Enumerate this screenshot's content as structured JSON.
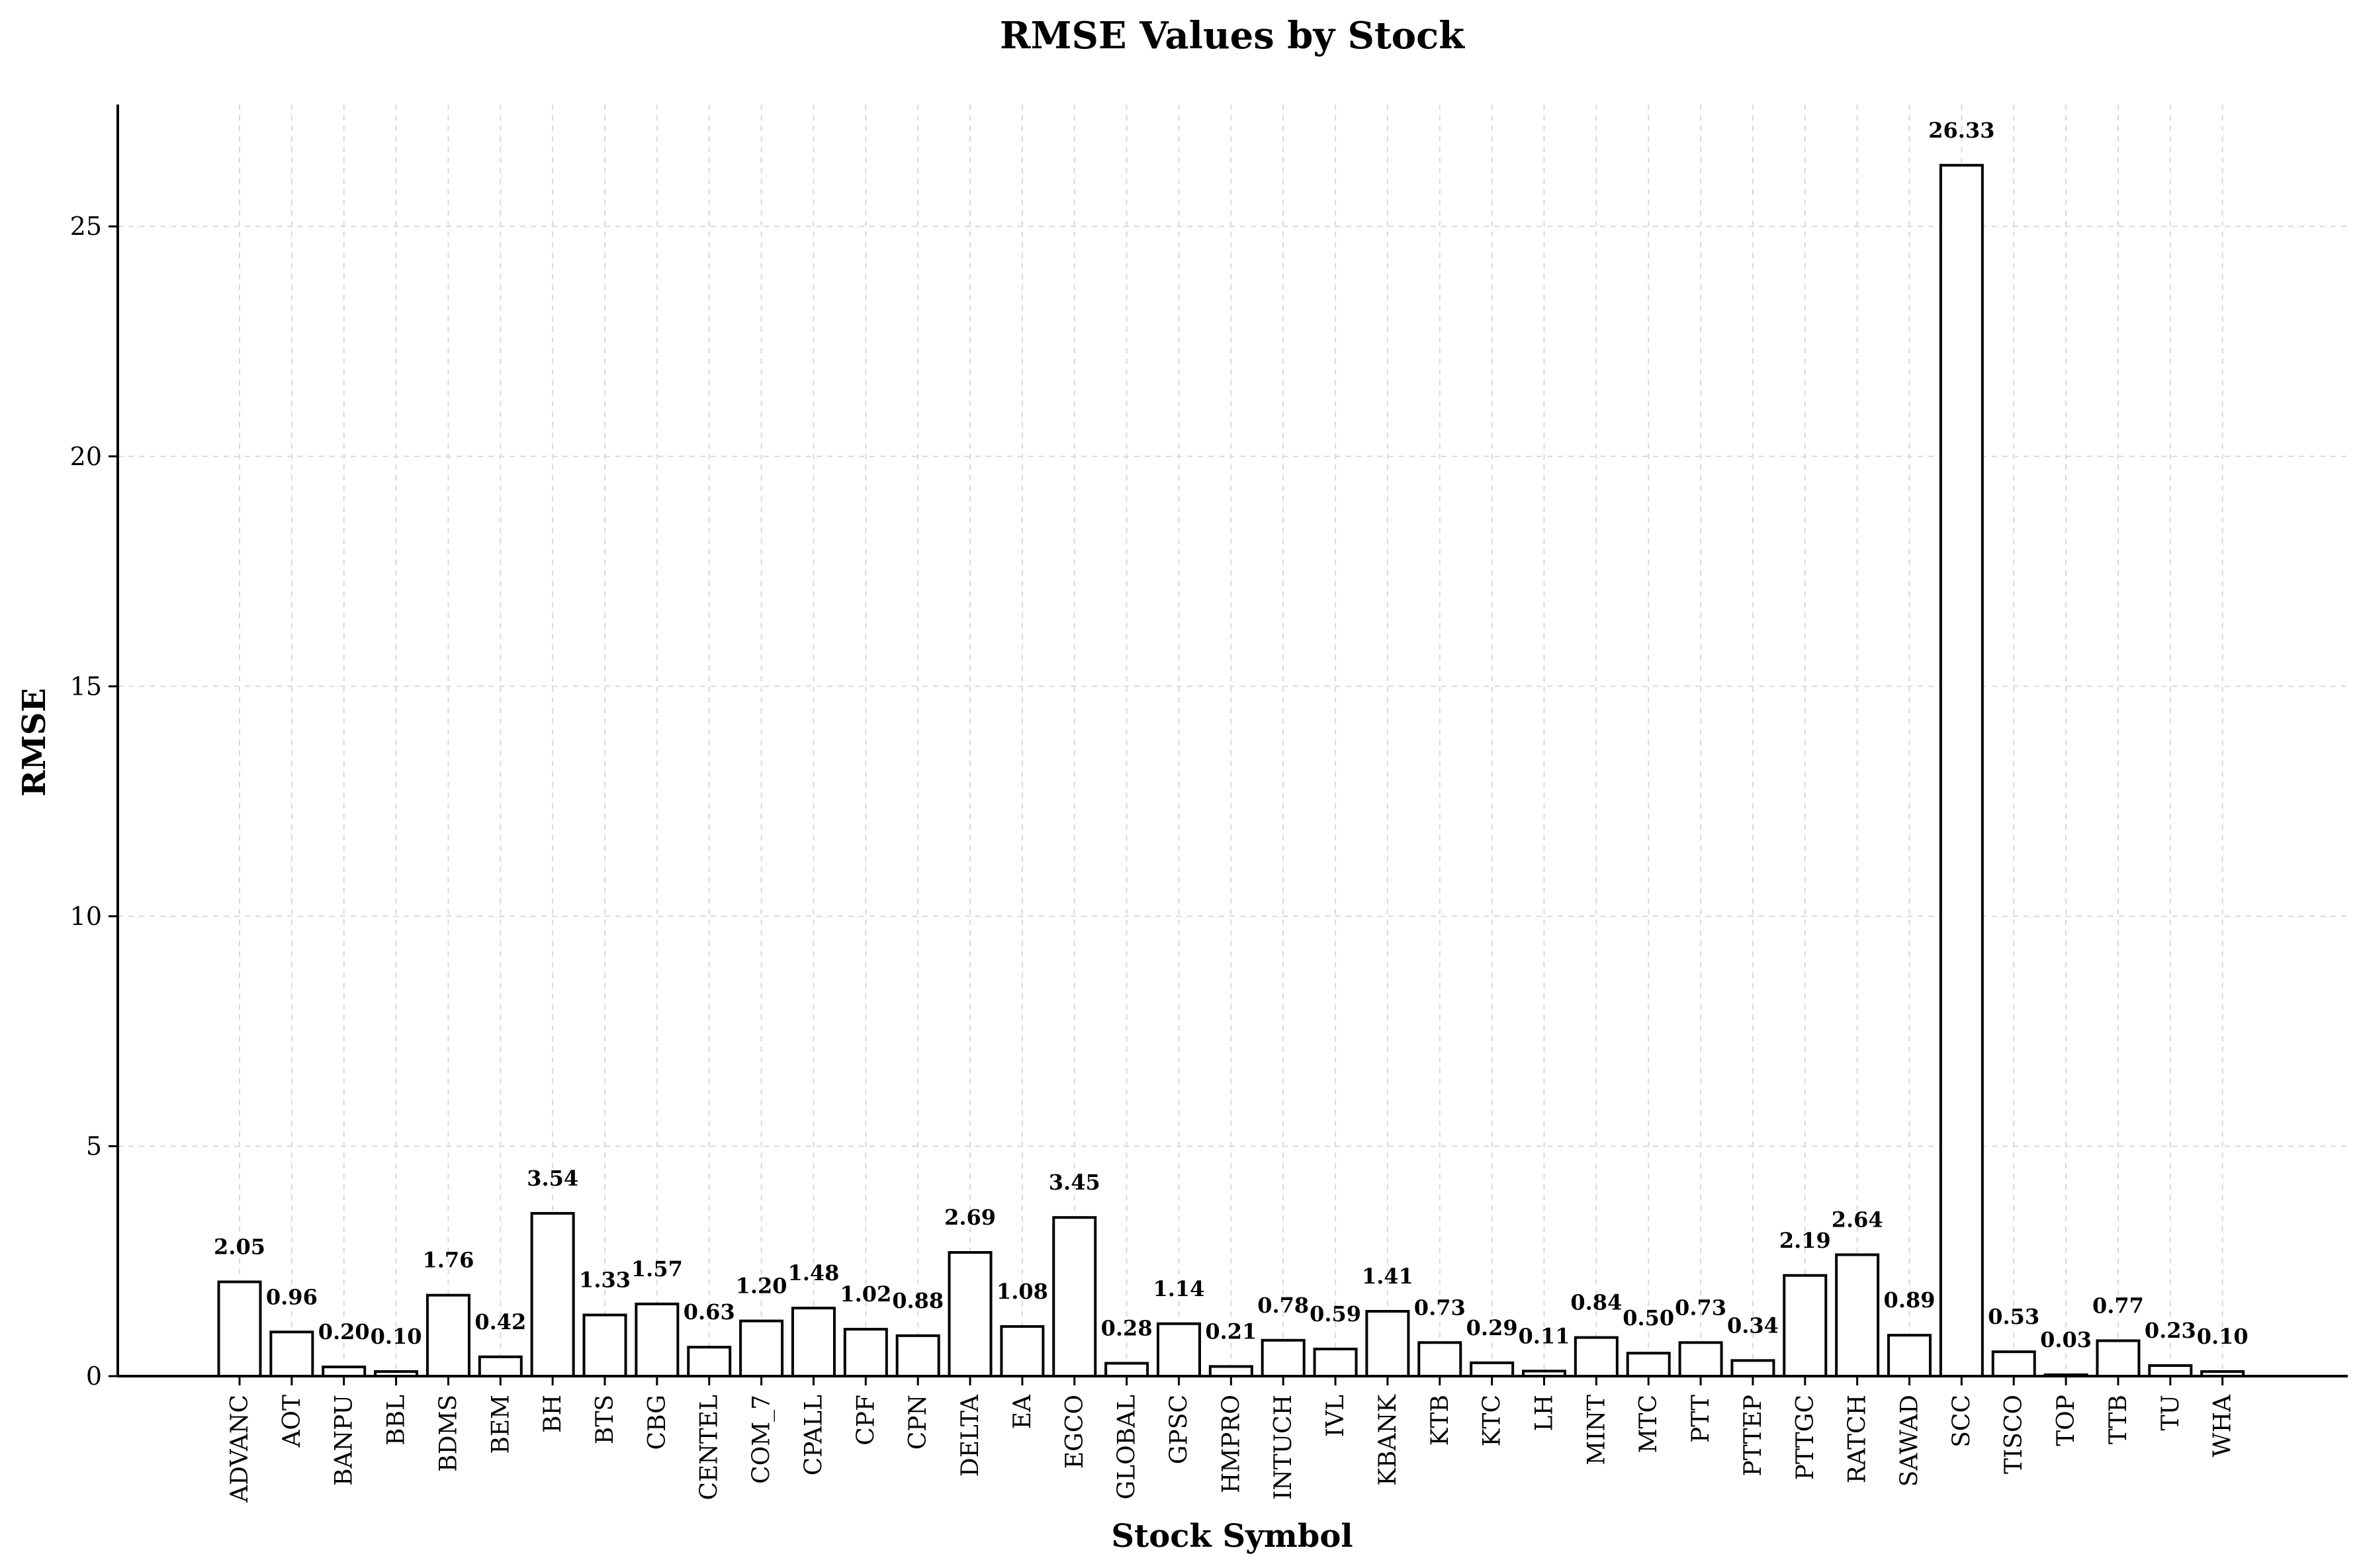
{
  "chart_data": {
    "type": "bar",
    "title": "RMSE Values by Stock",
    "xlabel": "Stock Symbol",
    "ylabel": "RMSE",
    "ylim": [
      0,
      27.65
    ],
    "yticks": [
      0,
      5,
      10,
      15,
      20,
      25
    ],
    "grid": true,
    "categories": [
      "ADVANC",
      "AOT",
      "BANPU",
      "BBL",
      "BDMS",
      "BEM",
      "BH",
      "BTS",
      "CBG",
      "CENTEL",
      "COM_7",
      "CPALL",
      "CPF",
      "CPN",
      "DELTA",
      "EA",
      "EGCO",
      "GLOBAL",
      "GPSC",
      "HMPRO",
      "INTUCH",
      "IVL",
      "KBANK",
      "KTB",
      "KTC",
      "LH",
      "MINT",
      "MTC",
      "PTT",
      "PTTEP",
      "PTTGC",
      "RATCH",
      "SAWAD",
      "SCC",
      "TISCO",
      "TOP",
      "TTB",
      "TU",
      "WHA"
    ],
    "values": [
      2.05,
      0.96,
      0.2,
      0.1,
      1.76,
      0.42,
      3.54,
      1.33,
      1.57,
      0.63,
      1.2,
      1.48,
      1.02,
      0.88,
      2.69,
      1.08,
      3.45,
      0.28,
      1.14,
      0.21,
      0.78,
      0.59,
      1.41,
      0.73,
      0.29,
      0.11,
      0.84,
      0.5,
      0.73,
      0.34,
      2.19,
      2.64,
      0.89,
      26.33,
      0.53,
      0.03,
      0.77,
      0.23,
      0.1
    ],
    "labels": [
      "2.05",
      "0.96",
      "0.20",
      "0.10",
      "1.76",
      "0.42",
      "3.54",
      "1.33",
      "1.57",
      "0.63",
      "1.20",
      "1.48",
      "1.02",
      "0.88",
      "2.69",
      "1.08",
      "3.45",
      "0.28",
      "1.14",
      "0.21",
      "0.78",
      "0.59",
      "1.41",
      "0.73",
      "0.29",
      "0.11",
      "0.84",
      "0.50",
      "0.73",
      "0.34",
      "2.19",
      "2.64",
      "0.89",
      "26.33",
      "0.53",
      "0.03",
      "0.77",
      "0.23",
      "0.10"
    ],
    "colors": {
      "bar_fill": "#ffffff",
      "bar_edge": "#000000",
      "grid": "#d9d9d9"
    }
  }
}
